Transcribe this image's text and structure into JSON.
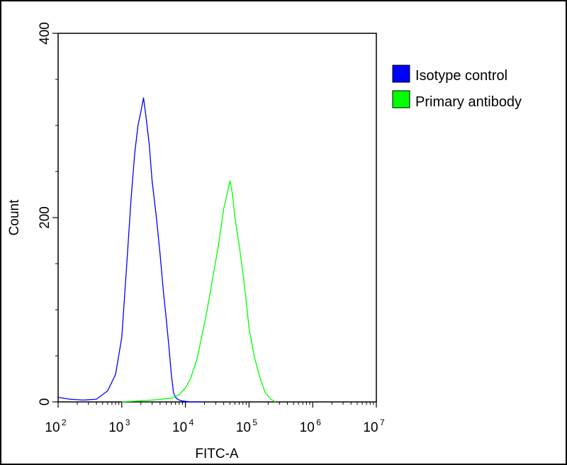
{
  "chart_data": {
    "type": "line",
    "title": "",
    "xlabel": "FITC-A",
    "ylabel": "Count",
    "x_scale": "log",
    "xlim": [
      100,
      10000000
    ],
    "ylim": [
      0,
      400
    ],
    "x_ticks": [
      {
        "base": "10",
        "exp": "2",
        "value": 100
      },
      {
        "base": "10",
        "exp": "3",
        "value": 1000
      },
      {
        "base": "10",
        "exp": "4",
        "value": 10000
      },
      {
        "base": "10",
        "exp": "5",
        "value": 100000
      },
      {
        "base": "10",
        "exp": "6",
        "value": 1000000
      },
      {
        "base": "10",
        "exp": "7",
        "value": 10000000
      }
    ],
    "y_ticks": [
      "0",
      "200",
      "400"
    ],
    "grid": false,
    "legend_position": "right",
    "series": [
      {
        "name": "Isotype control",
        "color": "#0000ff",
        "x": [
          100,
          150,
          250,
          400,
          600,
          800,
          1000,
          1200,
          1400,
          1600,
          1800,
          2000,
          2200,
          2400,
          2700,
          3000,
          3500,
          4000,
          4500,
          5000,
          5500,
          6000,
          6500,
          7000,
          7500,
          8000,
          9000,
          12000,
          20000
        ],
        "y": [
          5,
          3,
          2,
          3,
          12,
          30,
          70,
          150,
          220,
          270,
          300,
          315,
          330,
          310,
          280,
          240,
          200,
          160,
          120,
          90,
          60,
          30,
          10,
          5,
          3,
          2,
          1,
          0,
          0
        ]
      },
      {
        "name": "Primary antibody",
        "color": "#00ff00",
        "x": [
          1000,
          3000,
          6000,
          8000,
          10000,
          12000,
          15000,
          18000,
          22000,
          27000,
          33000,
          40000,
          45000,
          50000,
          55000,
          60000,
          70000,
          80000,
          90000,
          100000,
          120000,
          150000,
          180000,
          220000,
          260000
        ],
        "y": [
          0,
          2,
          4,
          8,
          15,
          25,
          45,
          70,
          100,
          135,
          170,
          210,
          225,
          240,
          225,
          200,
          170,
          140,
          110,
          80,
          50,
          25,
          10,
          3,
          0
        ]
      }
    ]
  }
}
